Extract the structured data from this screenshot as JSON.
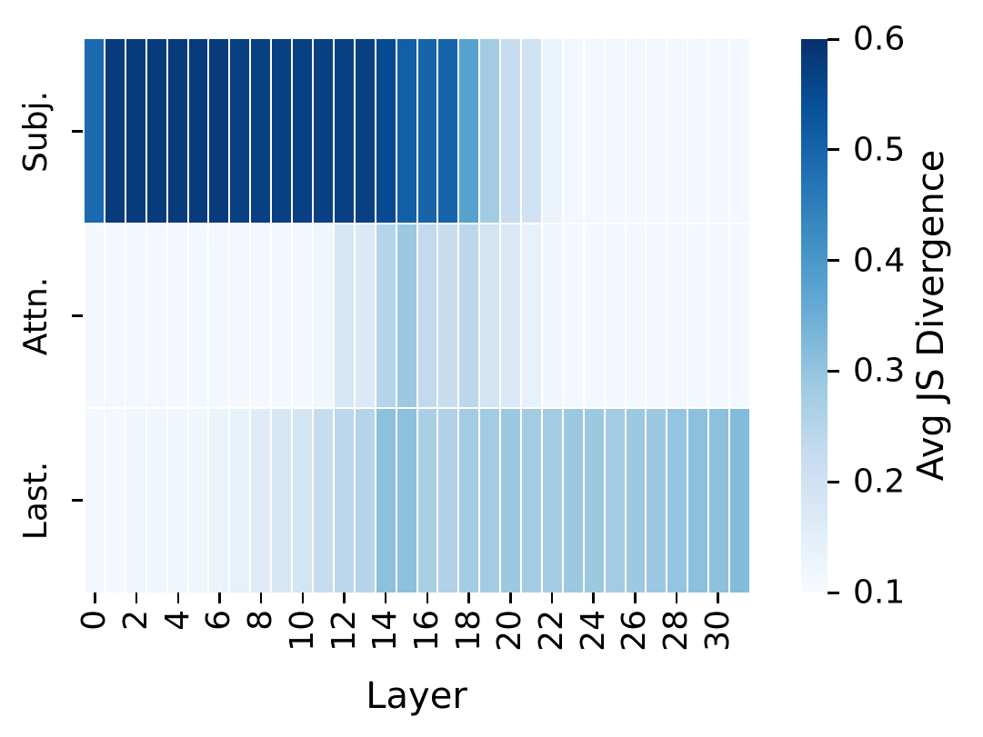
{
  "figure": {
    "background": "#ffffff"
  },
  "chart_data": {
    "type": "heatmap",
    "title": "",
    "xlabel": "Layer",
    "ylabel": "",
    "rows": [
      "Subj.",
      "Attn.",
      "Last."
    ],
    "x": [
      0,
      1,
      2,
      3,
      4,
      5,
      6,
      7,
      8,
      9,
      10,
      11,
      12,
      13,
      14,
      15,
      16,
      17,
      18,
      19,
      20,
      21,
      22,
      23,
      24,
      25,
      26,
      27,
      28,
      29,
      30,
      31
    ],
    "x_tick_labels": [
      "0",
      "2",
      "4",
      "6",
      "8",
      "10",
      "12",
      "14",
      "16",
      "18",
      "20",
      "22",
      "24",
      "26",
      "28",
      "30"
    ],
    "series": [
      {
        "name": "Subj.",
        "values": [
          0.49,
          0.58,
          0.58,
          0.58,
          0.58,
          0.58,
          0.58,
          0.57,
          0.57,
          0.57,
          0.57,
          0.57,
          0.57,
          0.57,
          0.55,
          0.51,
          0.5,
          0.5,
          0.38,
          0.28,
          0.22,
          0.2,
          0.13,
          0.11,
          0.11,
          0.11,
          0.11,
          0.11,
          0.11,
          0.11,
          0.11,
          0.11
        ]
      },
      {
        "name": "Attn.",
        "values": [
          0.11,
          0.11,
          0.11,
          0.11,
          0.11,
          0.11,
          0.11,
          0.11,
          0.11,
          0.11,
          0.11,
          0.12,
          0.18,
          0.17,
          0.25,
          0.29,
          0.23,
          0.22,
          0.24,
          0.19,
          0.17,
          0.14,
          0.12,
          0.11,
          0.11,
          0.11,
          0.11,
          0.11,
          0.11,
          0.11,
          0.11,
          0.11
        ]
      },
      {
        "name": "Last.",
        "values": [
          0.11,
          0.11,
          0.12,
          0.12,
          0.12,
          0.12,
          0.13,
          0.14,
          0.16,
          0.18,
          0.19,
          0.22,
          0.24,
          0.25,
          0.31,
          0.31,
          0.27,
          0.26,
          0.28,
          0.28,
          0.29,
          0.28,
          0.28,
          0.29,
          0.29,
          0.28,
          0.29,
          0.29,
          0.3,
          0.31,
          0.31,
          0.32
        ]
      }
    ],
    "colorbar": {
      "label": "Avg JS Divergence",
      "ticks": [
        0.6,
        0.5,
        0.4,
        0.3,
        0.2,
        0.1
      ],
      "tick_labels": [
        "0.6",
        "0.5",
        "0.4",
        "0.3",
        "0.2",
        "0.1"
      ],
      "vmin": 0.1,
      "vmax": 0.6,
      "colormap": "Blues",
      "position": "right"
    },
    "grid": false,
    "cell_gridline_color": "#ffffff"
  },
  "colors": {
    "blues_anchors": [
      "#f7fbff",
      "#deebf7",
      "#c6dbef",
      "#9ecae1",
      "#6baed6",
      "#4292c6",
      "#2171b5",
      "#08519c",
      "#08306b"
    ],
    "text": "#000000",
    "background": "#ffffff"
  }
}
